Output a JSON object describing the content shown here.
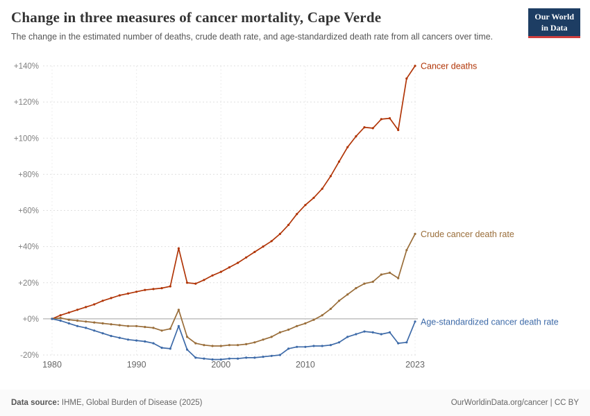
{
  "header": {
    "title": "Change in three measures of cancer mortality, Cape Verde",
    "subtitle": "The change in the estimated number of deaths, crude death rate, and age-standardized death rate from all cancers over time.",
    "logo": {
      "line1": "Our World",
      "line2": "in Data"
    }
  },
  "footer": {
    "source_label": "Data source:",
    "source": "IHME, Global Burden of Disease (2025)",
    "link": "OurWorldinData.org/cancer | CC BY"
  },
  "colors": {
    "cancer_deaths": "#b13507",
    "crude_rate": "#996d39",
    "age_standardized": "#3d6aa8",
    "zero_line": "#a0a0a0",
    "gridline": "#dfdfdf",
    "axis_text": "#7f7f7f"
  },
  "chart_data": {
    "type": "line",
    "title": "Change in three measures of cancer mortality, Cape Verde",
    "xlabel": "",
    "ylabel": "",
    "grid": true,
    "legend": "line-end-labels",
    "ylim": [
      -20,
      140
    ],
    "x": [
      1980,
      1981,
      1982,
      1983,
      1984,
      1985,
      1986,
      1987,
      1988,
      1989,
      1990,
      1991,
      1992,
      1993,
      1994,
      1995,
      1996,
      1997,
      1998,
      1999,
      2000,
      2001,
      2002,
      2003,
      2004,
      2005,
      2006,
      2007,
      2008,
      2009,
      2010,
      2011,
      2012,
      2013,
      2014,
      2015,
      2016,
      2017,
      2018,
      2019,
      2020,
      2021,
      2022,
      2023
    ],
    "yticks": [
      {
        "value": 140,
        "label": "+140%"
      },
      {
        "value": 120,
        "label": "+120%"
      },
      {
        "value": 100,
        "label": "+100%"
      },
      {
        "value": 80,
        "label": "+80%"
      },
      {
        "value": 60,
        "label": "+60%"
      },
      {
        "value": 40,
        "label": "+40%"
      },
      {
        "value": 20,
        "label": "+20%"
      },
      {
        "value": 0,
        "label": "+0%"
      },
      {
        "value": -20,
        "label": "-20%"
      }
    ],
    "xticks": [
      {
        "value": 1980,
        "label": "1980"
      },
      {
        "value": 1990,
        "label": "1990"
      },
      {
        "value": 2000,
        "label": "2000"
      },
      {
        "value": 2010,
        "label": "2010"
      },
      {
        "value": 2023,
        "label": "2023"
      }
    ],
    "series": [
      {
        "name": "Cancer deaths",
        "color": "#b13507",
        "values": [
          0,
          2,
          3.5,
          5,
          6.5,
          8,
          10,
          11.5,
          13,
          14,
          15,
          16,
          16.5,
          17,
          18,
          39,
          20,
          19.5,
          21.5,
          24,
          26,
          28.5,
          31,
          34,
          37,
          40,
          43,
          47,
          52,
          58,
          63,
          67,
          72,
          79,
          87,
          95,
          101,
          106,
          105.5,
          110.5,
          111,
          104.5,
          133,
          140
        ]
      },
      {
        "name": "Crude cancer death rate",
        "color": "#996d39",
        "values": [
          0,
          0.5,
          -0.5,
          -1,
          -1.5,
          -2,
          -2.5,
          -3,
          -3.5,
          -4,
          -4,
          -4.5,
          -5,
          -6.5,
          -5.5,
          5,
          -10,
          -13.5,
          -14.5,
          -15,
          -15,
          -14.5,
          -14.5,
          -14,
          -13,
          -11.5,
          -10,
          -7.5,
          -6,
          -4,
          -2.5,
          -0.5,
          2,
          5.5,
          10,
          13.5,
          17,
          19.5,
          20.5,
          24.5,
          25.5,
          22.5,
          38,
          47
        ]
      },
      {
        "name": "Age-standardized cancer death rate",
        "color": "#3d6aa8",
        "values": [
          0,
          -1,
          -2.5,
          -4,
          -5,
          -6.5,
          -8,
          -9.5,
          -10.5,
          -11.5,
          -12,
          -12.5,
          -13.5,
          -16,
          -16.5,
          -4,
          -17,
          -21.5,
          -22,
          -22.5,
          -22.5,
          -22,
          -22,
          -21.5,
          -21.5,
          -21,
          -20.5,
          -20,
          -16.5,
          -15.5,
          -15.5,
          -15,
          -15,
          -14.5,
          -13,
          -10,
          -8.5,
          -7,
          -7.5,
          -8.5,
          -7.5,
          -13.5,
          -13,
          -1.5
        ]
      }
    ]
  }
}
